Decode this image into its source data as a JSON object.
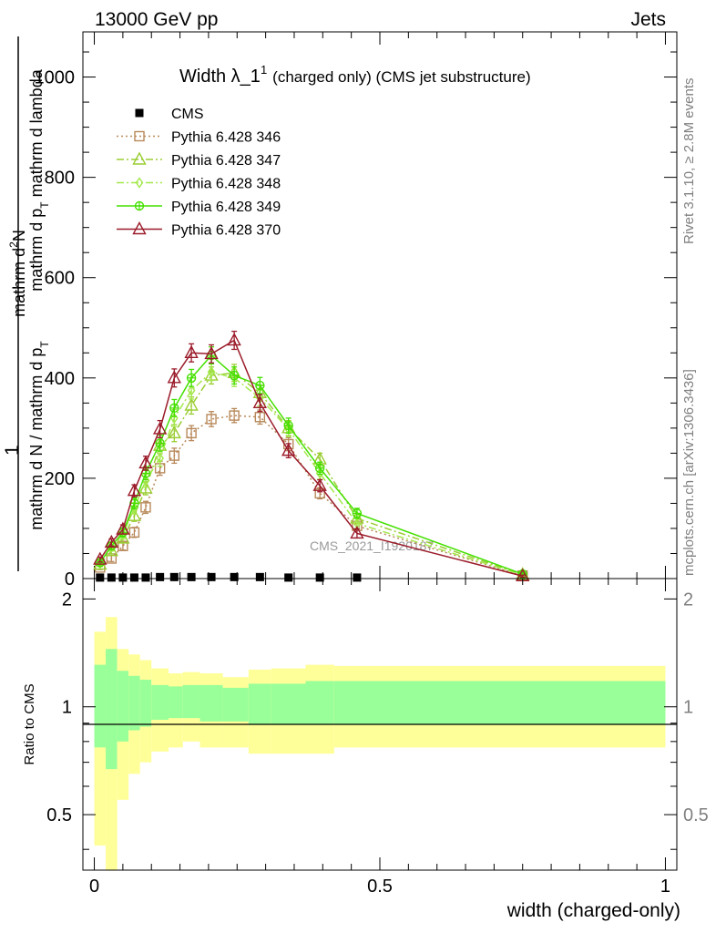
{
  "header": {
    "energy_label": "13000 GeV pp",
    "process_label": "Jets"
  },
  "side_text": {
    "rivet": "Rivet 3.1.10, ≥ 2.8M events",
    "mcplots": "mcplots.cern.ch [arXiv:1306.3436]"
  },
  "watermark": "CMS_2021_I1920187",
  "chart_data": [
    {
      "type": "line",
      "title_main": "Width λ_1",
      "title_sup": "1",
      "title_tail": "(charged only) (CMS jet substructure)",
      "ylabel_num": "1",
      "ylabel_num_text": "mathrm d",
      "ylabel_num_sup": "2",
      "ylabel_num_tail": "N",
      "ylabel_num2": "mathrm d p",
      "ylabel_num2_sub": "T",
      "ylabel_num2_tail": " mathrm d lambda",
      "ylabel_den": "mathrm d N / mathrm d p",
      "ylabel_den_sub": "T",
      "ylim": [
        0,
        1090
      ],
      "xlim": [
        -0.02,
        1.02
      ],
      "y_ticks": [
        "0",
        "200",
        "400",
        "600",
        "800",
        "1000"
      ],
      "legend_position": "top-left",
      "series": [
        {
          "name": "CMS",
          "color": "#000000",
          "marker": "square-filled",
          "style": "none",
          "x": [
            0.01,
            0.03,
            0.05,
            0.07,
            0.09,
            0.115,
            0.14,
            0.17,
            0.205,
            0.245,
            0.29,
            0.34,
            0.395,
            0.46
          ],
          "y": [
            2,
            2,
            2,
            2,
            2,
            3,
            3,
            3,
            3,
            3,
            3,
            2,
            2,
            2
          ],
          "err": [
            0,
            0,
            0,
            0,
            0,
            0,
            0,
            0,
            0,
            0,
            0,
            0,
            0,
            0
          ]
        },
        {
          "name": "Pythia 6.428 346",
          "color": "#b8895a",
          "marker": "square-open",
          "style": "dotted",
          "x": [
            0.01,
            0.03,
            0.05,
            0.07,
            0.09,
            0.115,
            0.14,
            0.17,
            0.205,
            0.245,
            0.29,
            0.34,
            0.395,
            0.46,
            0.75
          ],
          "y": [
            22,
            40,
            65,
            92,
            142,
            220,
            245,
            290,
            318,
            325,
            322,
            268,
            170,
            105,
            6
          ],
          "err": [
            4,
            6,
            8,
            10,
            12,
            14,
            15,
            15,
            15,
            14,
            14,
            13,
            11,
            9,
            2
          ]
        },
        {
          "name": "Pythia 6.428 347",
          "color": "#9acd32",
          "marker": "triangle-open",
          "style": "dashdot",
          "x": [
            0.01,
            0.03,
            0.05,
            0.07,
            0.09,
            0.115,
            0.14,
            0.17,
            0.205,
            0.245,
            0.29,
            0.34,
            0.395,
            0.46,
            0.75
          ],
          "y": [
            28,
            55,
            80,
            125,
            180,
            265,
            290,
            345,
            405,
            410,
            370,
            300,
            238,
            120,
            8
          ],
          "err": [
            4,
            6,
            9,
            11,
            13,
            16,
            17,
            17,
            17,
            17,
            16,
            15,
            12,
            10,
            2
          ]
        },
        {
          "name": "Pythia 6.428 348",
          "color": "#a4e84d",
          "marker": "diamond-open",
          "style": "dashdot",
          "x": [
            0.01,
            0.03,
            0.05,
            0.07,
            0.09,
            0.115,
            0.14,
            0.17,
            0.205,
            0.245,
            0.29,
            0.34,
            0.395,
            0.46,
            0.75
          ],
          "y": [
            30,
            62,
            88,
            140,
            195,
            240,
            320,
            375,
            412,
            400,
            360,
            298,
            210,
            110,
            7
          ],
          "err": [
            4,
            7,
            9,
            11,
            13,
            16,
            17,
            17,
            17,
            17,
            16,
            15,
            12,
            10,
            2
          ]
        },
        {
          "name": "Pythia 6.428 349",
          "color": "#44e000",
          "marker": "circle-cross",
          "style": "solid",
          "x": [
            0.01,
            0.03,
            0.05,
            0.07,
            0.09,
            0.115,
            0.14,
            0.17,
            0.205,
            0.245,
            0.29,
            0.34,
            0.395,
            0.46,
            0.75
          ],
          "y": [
            32,
            65,
            92,
            150,
            210,
            270,
            340,
            400,
            445,
            405,
            385,
            305,
            220,
            130,
            9
          ],
          "err": [
            4,
            7,
            9,
            11,
            13,
            16,
            17,
            17,
            17,
            17,
            16,
            15,
            12,
            10,
            2
          ]
        },
        {
          "name": "Pythia 6.428 370",
          "color": "#9b1b2a",
          "marker": "triangle-open",
          "style": "solid",
          "x": [
            0.01,
            0.03,
            0.05,
            0.07,
            0.09,
            0.115,
            0.14,
            0.17,
            0.205,
            0.245,
            0.29,
            0.34,
            0.395,
            0.46,
            0.75
          ],
          "y": [
            38,
            72,
            98,
            175,
            230,
            298,
            400,
            450,
            448,
            475,
            350,
            255,
            185,
            90,
            5
          ],
          "err": [
            5,
            7,
            9,
            12,
            14,
            17,
            18,
            18,
            18,
            18,
            17,
            14,
            12,
            9,
            2
          ]
        }
      ]
    },
    {
      "type": "area",
      "ylabel": "Ratio to CMS",
      "xlabel": "width (charged-only)",
      "ylim": [
        0.35,
        2.28
      ],
      "xlim": [
        -0.02,
        1.02
      ],
      "y_ticks": [
        "0.5",
        "1",
        "2"
      ],
      "x_ticks": [
        "0",
        "0.5",
        "1"
      ],
      "reference_line": 1,
      "bands": {
        "outer_color": "#ffff99",
        "inner_color": "#99ff99",
        "bins": [
          0.0,
          0.02,
          0.04,
          0.06,
          0.08,
          0.1,
          0.13,
          0.155,
          0.185,
          0.225,
          0.27,
          0.31,
          0.37,
          0.42,
          1.0
        ],
        "outer_low": [
          0.41,
          0.35,
          0.55,
          0.65,
          0.7,
          0.75,
          0.77,
          0.8,
          0.77,
          0.77,
          0.74,
          0.74,
          0.74,
          0.77
        ],
        "outer_high": [
          1.62,
          1.78,
          1.45,
          1.4,
          1.35,
          1.28,
          1.24,
          1.25,
          1.24,
          1.21,
          1.27,
          1.28,
          1.31,
          1.3
        ],
        "inner_low": [
          0.77,
          0.67,
          0.8,
          0.86,
          0.88,
          0.92,
          0.93,
          0.93,
          0.91,
          0.91,
          0.89,
          0.89,
          0.89,
          0.89
        ],
        "inner_high": [
          1.31,
          1.45,
          1.26,
          1.22,
          1.19,
          1.15,
          1.14,
          1.15,
          1.15,
          1.13,
          1.16,
          1.16,
          1.18,
          1.18
        ]
      }
    }
  ]
}
